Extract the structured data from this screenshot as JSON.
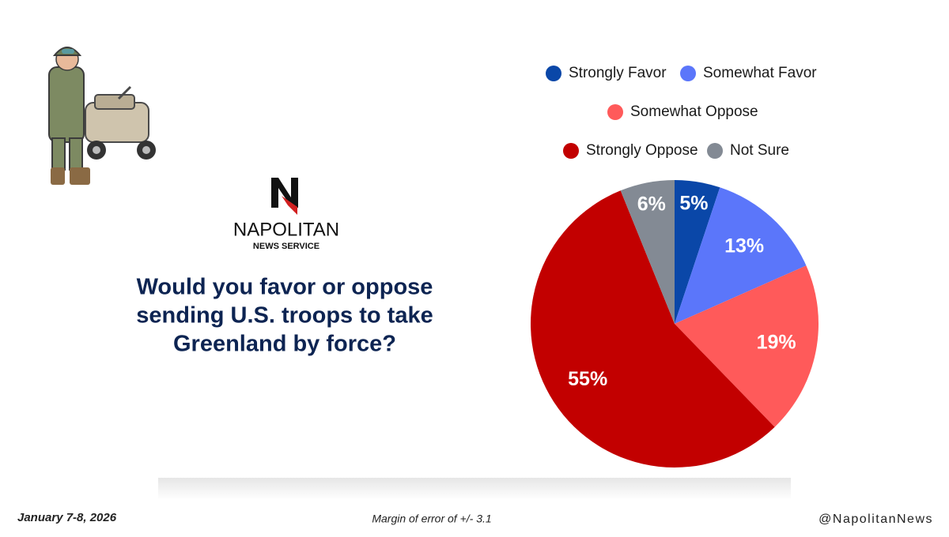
{
  "brand": {
    "name": "NAPOLITAN",
    "tagline": "NEWS SERVICE"
  },
  "footer": {
    "date": "January 7-8, 2026",
    "margin": "Margin of error of +/- 3.1",
    "handle": "@NapolitanNews"
  },
  "chart_data": {
    "type": "pie",
    "title": [
      "Would you favor or oppose",
      "sending U.S. troops to take",
      "Greenland by force?"
    ],
    "categories": [
      "Strongly Favor",
      "Somewhat Favor",
      "Somewhat Oppose",
      "Strongly Oppose",
      "Not Sure"
    ],
    "values": [
      5,
      13,
      19,
      55,
      6
    ],
    "value_labels": [
      "5%",
      "13%",
      "19%",
      "55%",
      "6%"
    ],
    "colors": [
      "#0a47a8",
      "#5b76fa",
      "#ff5a5a",
      "#c20000",
      "#838a94"
    ],
    "legend": "top"
  }
}
